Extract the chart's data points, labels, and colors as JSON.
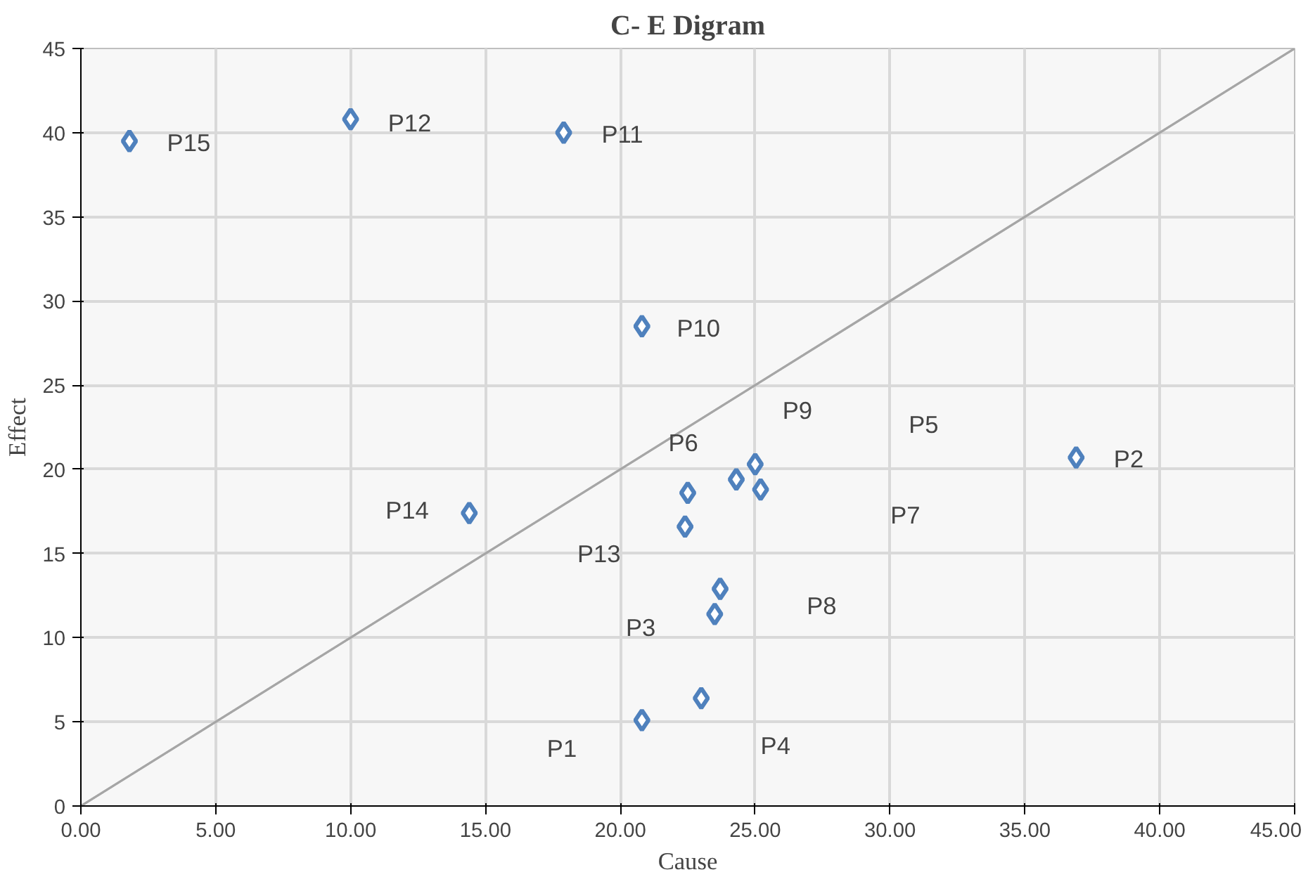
{
  "chart_data": {
    "type": "scatter",
    "title": "C- E Digram",
    "xlabel": "Cause",
    "ylabel": "Effect",
    "xlim": [
      0,
      45
    ],
    "ylim": [
      0,
      45
    ],
    "xticks": [
      {
        "value": 0,
        "label": "0.00"
      },
      {
        "value": 5,
        "label": "5.00"
      },
      {
        "value": 10,
        "label": "10.00"
      },
      {
        "value": 15,
        "label": "15.00"
      },
      {
        "value": 20,
        "label": "20.00"
      },
      {
        "value": 25,
        "label": "25.00"
      },
      {
        "value": 30,
        "label": "30.00"
      },
      {
        "value": 35,
        "label": "35.00"
      },
      {
        "value": 40,
        "label": "40.00"
      },
      {
        "value": 45,
        "label": "45.00"
      }
    ],
    "yticks": [
      0,
      5,
      10,
      15,
      20,
      25,
      30,
      35,
      40,
      45
    ],
    "grid": true,
    "series": [
      {
        "marker": "diamond",
        "color": "#4f81bd",
        "x": [
          1.8,
          10.0,
          17.9,
          20.8,
          14.4,
          36.9,
          22.5,
          22.4,
          25.0,
          24.3,
          25.2,
          23.7,
          23.5,
          23.0,
          20.8
        ],
        "values": [
          39.5,
          40.8,
          40.0,
          28.5,
          17.4,
          20.7,
          18.6,
          16.6,
          20.3,
          19.4,
          18.8,
          12.9,
          11.4,
          6.4,
          5.1
        ]
      },
      {
        "type": "line",
        "color": "#a6a6a6",
        "x": [
          0,
          45
        ],
        "values": [
          0,
          45
        ]
      }
    ],
    "annotations": [
      "P15",
      "P12",
      "P11",
      "P10",
      "P9",
      "P5",
      "P2",
      "P6",
      "P14",
      "P7",
      "P13",
      "P8",
      "P3",
      "P4",
      "P1"
    ]
  }
}
